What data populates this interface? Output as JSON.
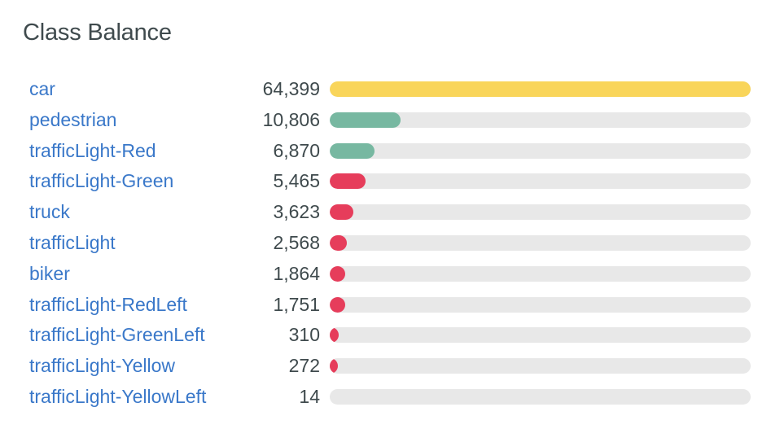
{
  "header": {
    "title": "Class Balance"
  },
  "colors": {
    "high": "#f9d55a",
    "medium": "#77b8a1",
    "low": "#e63d5b",
    "track": "#e8e8e8"
  },
  "chart_data": {
    "type": "bar",
    "title": "Class Balance",
    "orientation": "horizontal",
    "categories": [
      "car",
      "pedestrian",
      "trafficLight-Red",
      "trafficLight-Green",
      "truck",
      "trafficLight",
      "biker",
      "trafficLight-RedLeft",
      "trafficLight-GreenLeft",
      "trafficLight-Yellow",
      "trafficLight-YellowLeft"
    ],
    "values": [
      64399,
      10806,
      6870,
      5465,
      3623,
      2568,
      1864,
      1751,
      310,
      272,
      14
    ],
    "value_labels": [
      "64,399",
      "10,806",
      "6,870",
      "5,465",
      "3,623",
      "2,568",
      "1,864",
      "1,751",
      "310",
      "272",
      "14"
    ],
    "bar_colors": [
      "high",
      "medium",
      "medium",
      "low",
      "low",
      "low",
      "low",
      "low",
      "low",
      "low",
      "low"
    ],
    "xlim": [
      0,
      64399
    ]
  }
}
